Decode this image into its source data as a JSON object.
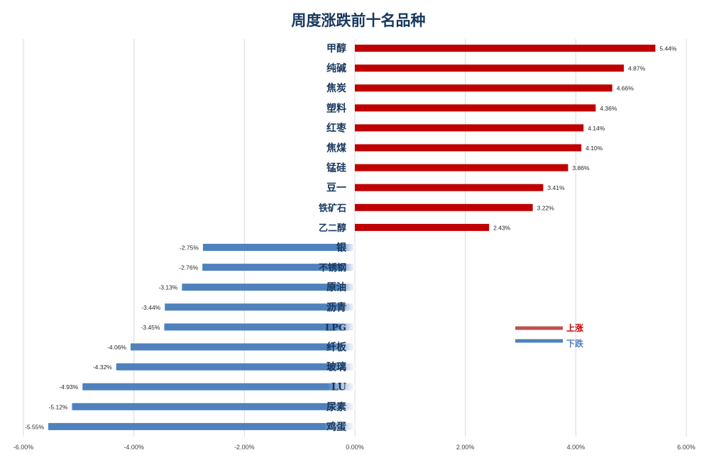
{
  "chart_data": {
    "type": "bar",
    "orientation": "horizontal",
    "title": "周度涨跌前十名品种",
    "xlim": [
      -6,
      6
    ],
    "x_ticks": [
      -6,
      -4,
      -2,
      0,
      2,
      4,
      6
    ],
    "x_tick_labels": [
      "-6.00%",
      "-4.00%",
      "-2.00%",
      "0.00%",
      "2.00%",
      "4.00%",
      "6.00%"
    ],
    "grid": "vertical",
    "legend_position": "right-middle",
    "colors": {
      "up": "#c00000",
      "down": "#4f81bd",
      "grid": "#d9d9d9",
      "label": "#17375e",
      "title": "#17375e"
    },
    "series": [
      {
        "name": "上涨",
        "color": "#c0504d"
      },
      {
        "name": "下跌",
        "color": "#4f81bd"
      }
    ],
    "categories": [
      "甲醇",
      "纯碱",
      "焦炭",
      "塑料",
      "红枣",
      "焦煤",
      "锰硅",
      "豆一",
      "铁矿石",
      "乙二醇",
      "银",
      "不锈钢",
      "原油",
      "沥青",
      "LPG",
      "纤板",
      "玻璃",
      "LU",
      "尿素",
      "鸡蛋"
    ],
    "values": [
      5.44,
      4.87,
      4.66,
      4.36,
      4.14,
      4.1,
      3.86,
      3.41,
      3.22,
      2.43,
      -2.75,
      -2.76,
      -3.13,
      -3.44,
      -3.45,
      -4.06,
      -4.32,
      -4.93,
      -5.12,
      -5.55
    ],
    "value_labels": [
      "5.44%",
      "4.87%",
      "4.66%",
      "4.36%",
      "4.14%",
      "4.10%",
      "3.86%",
      "3.41%",
      "3.22%",
      "2.43%",
      "-2.75%",
      "-2.76%",
      "-3.13%",
      "-3.44%",
      "-3.45%",
      "-4.06%",
      "-4.32%",
      "-4.93%",
      "-5.12%",
      "-5.55%"
    ]
  }
}
